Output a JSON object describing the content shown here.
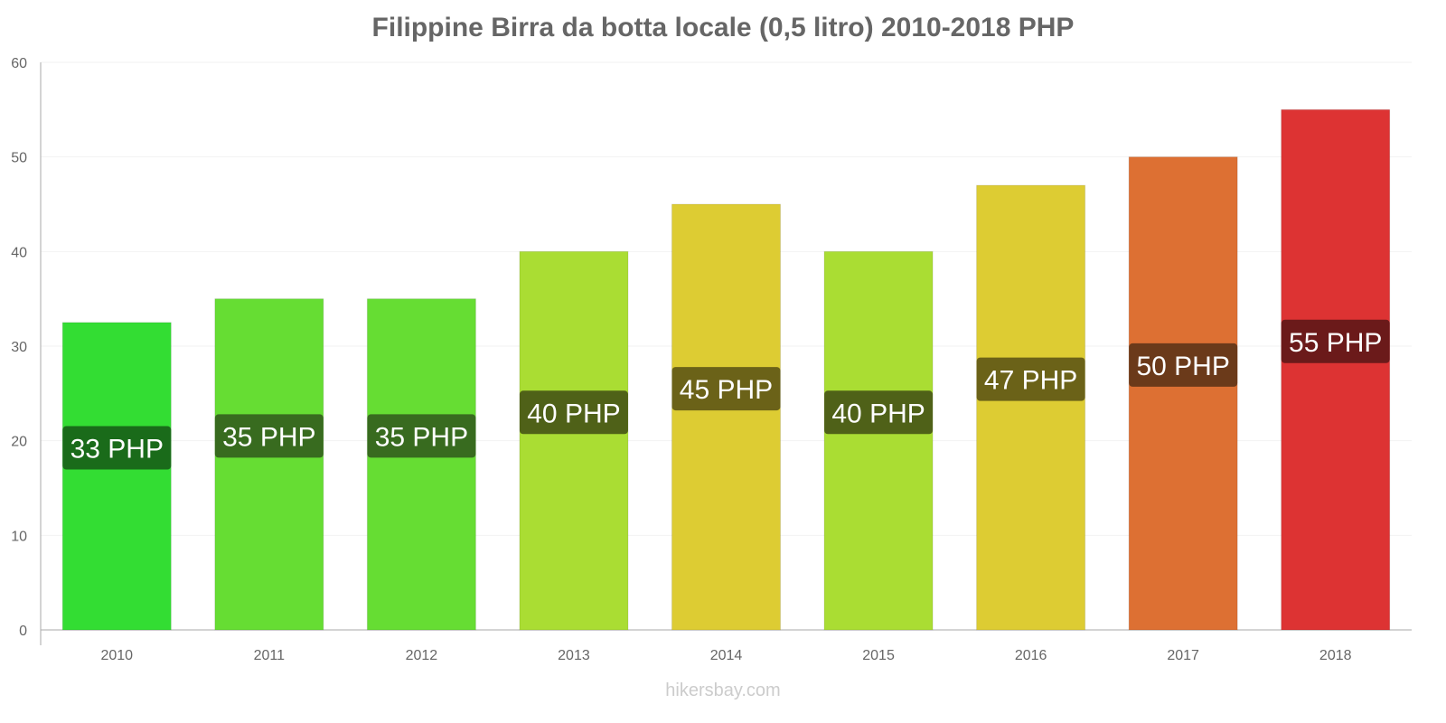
{
  "chart_data": {
    "type": "bar",
    "title": "Filippine Birra da botta locale (0,5 litro) 2010-2018 PHP",
    "xlabel": "",
    "ylabel": "",
    "ylim": [
      0,
      60
    ],
    "yticks": [
      0,
      10,
      20,
      30,
      40,
      50,
      60
    ],
    "grid": true,
    "categories": [
      "2010",
      "2011",
      "2012",
      "2013",
      "2014",
      "2015",
      "2016",
      "2017",
      "2018"
    ],
    "values": [
      32.5,
      35,
      35,
      40,
      45,
      40,
      47,
      50,
      55
    ],
    "data_labels": [
      "33 PHP",
      "35 PHP",
      "35 PHP",
      "40 PHP",
      "45 PHP",
      "40 PHP",
      "47 PHP",
      "50 PHP",
      "55 PHP"
    ],
    "bar_colors": [
      "#33dd33",
      "#66dd33",
      "#66dd33",
      "#aadd33",
      "#ddcc33",
      "#aadd33",
      "#ddcc33",
      "#dd7033",
      "#dd3333"
    ],
    "label_colors": [
      "#1a6b1a",
      "#386b1f",
      "#386b1f",
      "#4f6118",
      "#6b6218",
      "#4f6118",
      "#6b6218",
      "#6b3a1a",
      "#6b1a1a"
    ]
  },
  "credit": "hikersbay.com"
}
